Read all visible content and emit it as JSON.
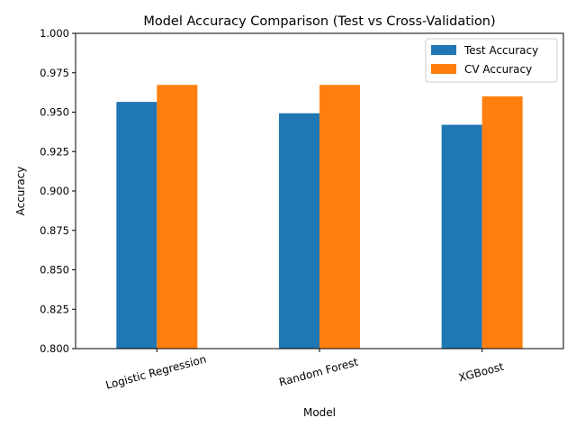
{
  "chart_data": {
    "type": "bar",
    "title": "Model Accuracy Comparison (Test vs Cross-Validation)",
    "xlabel": "Model",
    "ylabel": "Accuracy",
    "categories": [
      "Logistic Regression",
      "Random Forest",
      "XGBoost"
    ],
    "series": [
      {
        "name": "Test Accuracy",
        "color": "#1f77b4",
        "values": [
          0.9565,
          0.9493,
          0.942
        ]
      },
      {
        "name": "CV Accuracy",
        "color": "#ff7f0e",
        "values": [
          0.9673,
          0.9673,
          0.96
        ]
      }
    ],
    "ylim": [
      0.8,
      1.0
    ],
    "yticks": [
      "0.800",
      "0.825",
      "0.850",
      "0.875",
      "0.900",
      "0.925",
      "0.950",
      "0.975",
      "1.000"
    ],
    "grid": false,
    "legend_position": "top-right"
  }
}
